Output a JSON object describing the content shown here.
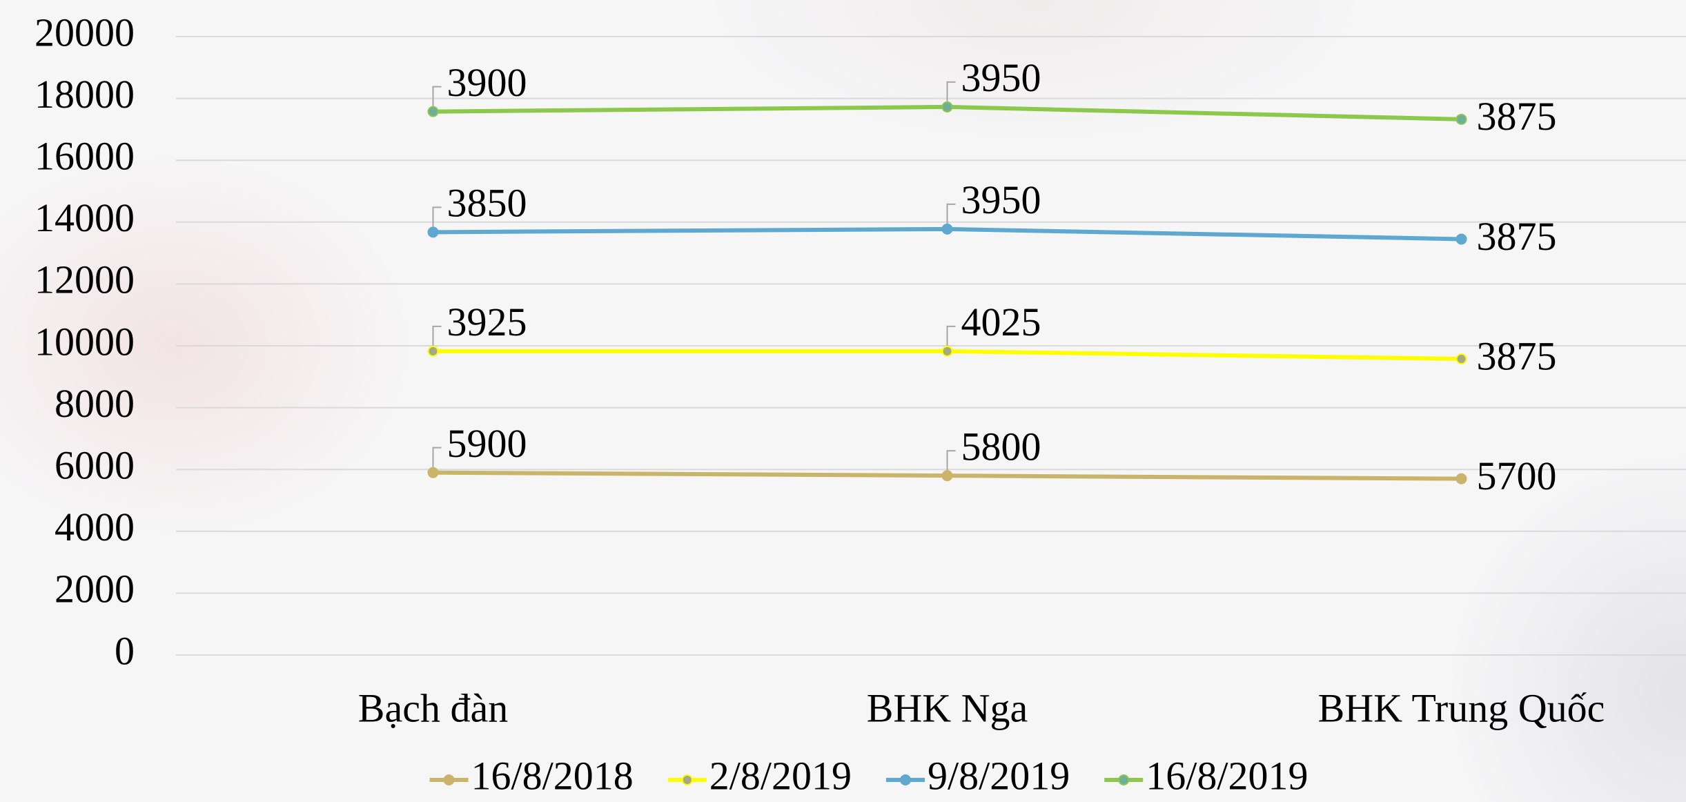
{
  "chart_data": {
    "type": "line",
    "stacked": true,
    "categories": [
      "Bạch đàn",
      "BHK Nga",
      "BHK Trung Quốc"
    ],
    "series": [
      {
        "name": "16/8/2018",
        "color": "#c9b46a",
        "marker_color": "#c9b46a",
        "values": [
          5900,
          5800,
          5700
        ]
      },
      {
        "name": "2/8/2019",
        "color": "#ffff00",
        "marker_color": "#a3aa84",
        "values": [
          3925,
          4025,
          3875
        ]
      },
      {
        "name": "9/8/2019",
        "color": "#5fa8cf",
        "marker_color": "#5fa8cf",
        "values": [
          3850,
          3950,
          3875
        ]
      },
      {
        "name": "16/8/2019",
        "color": "#8cc84b",
        "marker_color": "#6fae9a",
        "values": [
          3900,
          3950,
          3875
        ]
      }
    ],
    "ylim": [
      0,
      20000
    ],
    "yticks": [
      0,
      2000,
      4000,
      6000,
      8000,
      10000,
      12000,
      14000,
      16000,
      18000,
      20000
    ],
    "grid": true,
    "legend": "bottom",
    "data_labels": true
  }
}
